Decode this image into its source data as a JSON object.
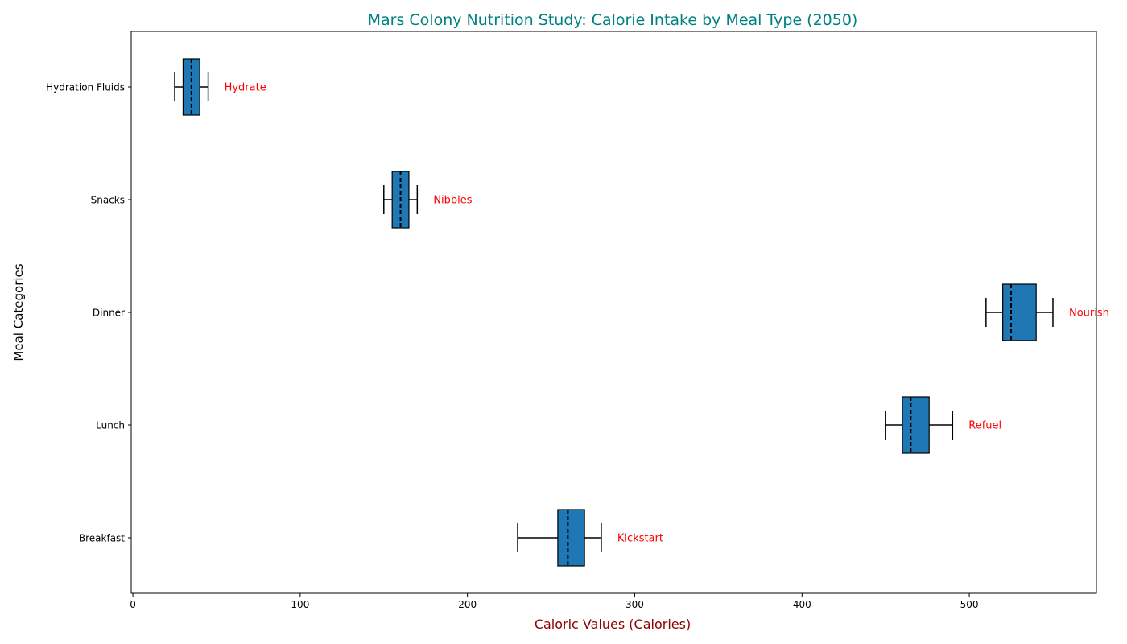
{
  "chart_data": {
    "type": "boxplot",
    "orientation": "horizontal",
    "title": "Mars Colony Nutrition Study: Calorie Intake by Meal Type (2050)",
    "xlabel": "Caloric Values (Calories)",
    "ylabel": "Meal Categories",
    "xlim": [
      -1,
      576
    ],
    "x_ticks": [
      0,
      100,
      200,
      300,
      400,
      500
    ],
    "grid": false,
    "categories": [
      "Breakfast",
      "Lunch",
      "Dinner",
      "Snacks",
      "Hydration Fluids"
    ],
    "boxes": [
      {
        "category": "Breakfast",
        "whisker_low": 230,
        "q1": 254,
        "median": 260,
        "q3": 270,
        "whisker_high": 280,
        "annotation": "Kickstart"
      },
      {
        "category": "Lunch",
        "whisker_low": 450,
        "q1": 460,
        "median": 465,
        "q3": 476,
        "whisker_high": 490,
        "annotation": "Refuel"
      },
      {
        "category": "Dinner",
        "whisker_low": 510,
        "q1": 520,
        "median": 525,
        "q3": 540,
        "whisker_high": 550,
        "annotation": "Nourish"
      },
      {
        "category": "Snacks",
        "whisker_low": 150,
        "q1": 155,
        "median": 160,
        "q3": 165,
        "whisker_high": 170,
        "annotation": "Nibbles"
      },
      {
        "category": "Hydration Fluids",
        "whisker_low": 25,
        "q1": 30,
        "median": 35,
        "q3": 40,
        "whisker_high": 45,
        "annotation": "Hydrate"
      }
    ],
    "colors": {
      "box_fill": "#1f77b4",
      "box_edge": "#000000",
      "median_line": "#000000",
      "title": "#008080",
      "xlabel": "#8b0000",
      "annotation": "#ff0000"
    }
  }
}
